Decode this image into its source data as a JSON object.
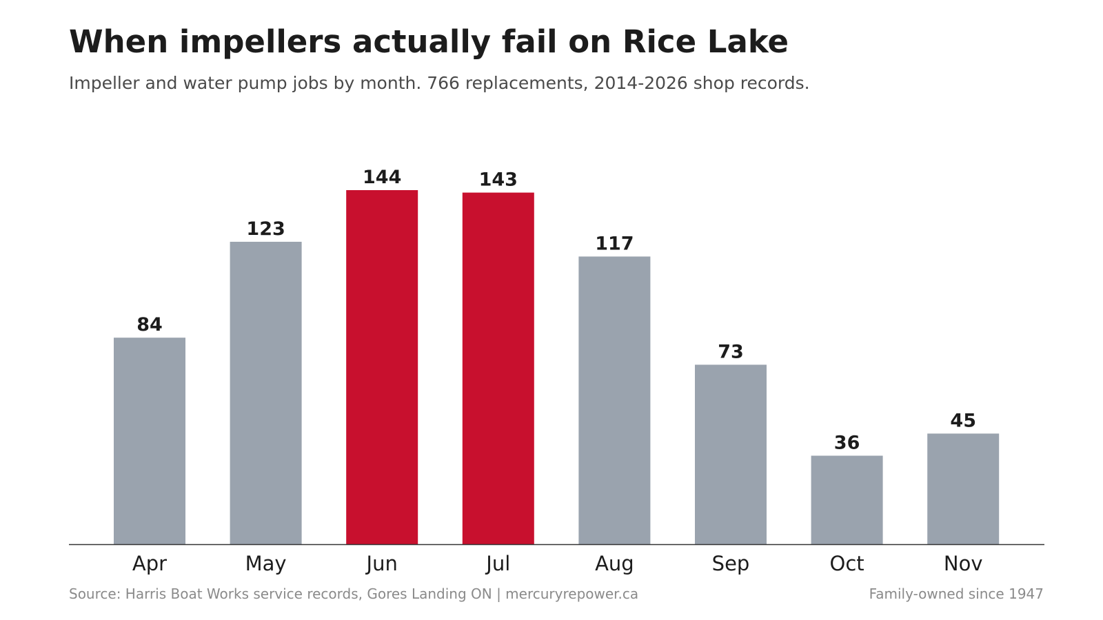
{
  "header": {
    "title": "When impellers actually fail on Rice Lake",
    "subtitle": "Impeller and water pump jobs by month. 766 replacements, 2014-2026 shop records."
  },
  "footer": {
    "source": "Source: Harris Boat Works service records, Gores Landing ON  |  mercuryrepower.ca",
    "tagline": "Family-owned since 1947"
  },
  "colors": {
    "default_bar": "#9aa3ae",
    "highlight_bar": "#c8102e",
    "axis": "#333333"
  },
  "chart_data": {
    "type": "bar",
    "categories": [
      "Apr",
      "May",
      "Jun",
      "Jul",
      "Aug",
      "Sep",
      "Oct",
      "Nov"
    ],
    "values": [
      84,
      123,
      144,
      143,
      117,
      73,
      36,
      45
    ],
    "value_labels": [
      "84",
      "123",
      "144",
      "143",
      "117",
      "73",
      "36",
      "45"
    ],
    "highlighted": [
      "Jun",
      "Jul"
    ],
    "title": "When impellers actually fail on Rice Lake",
    "xlabel": "",
    "ylabel": "",
    "ylim": [
      0,
      144
    ],
    "grid": false,
    "legend": "none"
  }
}
